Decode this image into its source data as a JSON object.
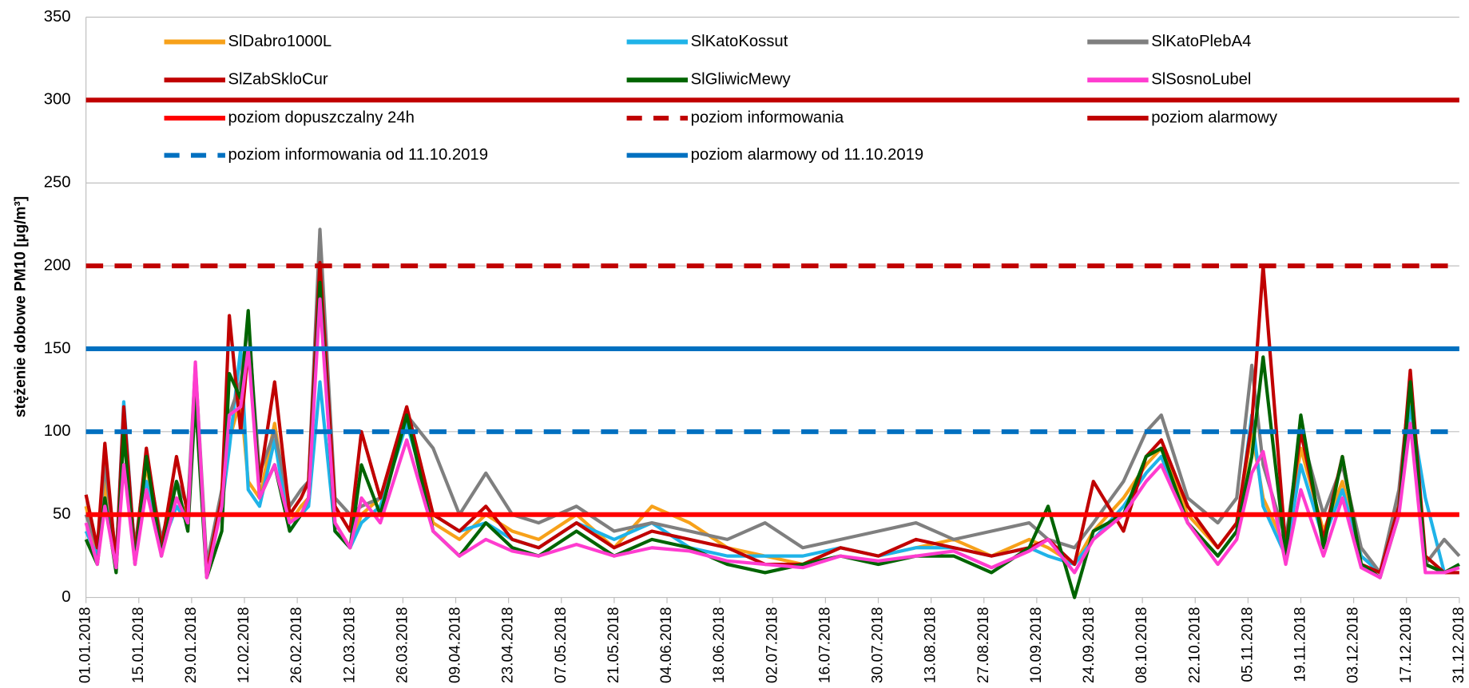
{
  "chart_data": {
    "type": "line",
    "ylabel": "stężenie dobowe PM10 [µg/m³]",
    "ylim": [
      0,
      350
    ],
    "yticks": [
      0,
      50,
      100,
      150,
      200,
      250,
      300,
      350
    ],
    "grid": true,
    "xlim": [
      0,
      364
    ],
    "xticks": [
      {
        "value": 0,
        "label": "01.01.2018"
      },
      {
        "value": 14,
        "label": "15.01.2018"
      },
      {
        "value": 28,
        "label": "29.01.2018"
      },
      {
        "value": 42,
        "label": "12.02.2018"
      },
      {
        "value": 56,
        "label": "26.02.2018"
      },
      {
        "value": 70,
        "label": "12.03.2018"
      },
      {
        "value": 84,
        "label": "26.03.2018"
      },
      {
        "value": 98,
        "label": "09.04.2018"
      },
      {
        "value": 112,
        "label": "23.04.2018"
      },
      {
        "value": 126,
        "label": "07.05.2018"
      },
      {
        "value": 140,
        "label": "21.05.2018"
      },
      {
        "value": 154,
        "label": "04.06.2018"
      },
      {
        "value": 168,
        "label": "18.06.2018"
      },
      {
        "value": 182,
        "label": "02.07.2018"
      },
      {
        "value": 196,
        "label": "16.07.2018"
      },
      {
        "value": 210,
        "label": "30.07.2018"
      },
      {
        "value": 224,
        "label": "13.08.2018"
      },
      {
        "value": 238,
        "label": "27.08.2018"
      },
      {
        "value": 252,
        "label": "10.09.2018"
      },
      {
        "value": 266,
        "label": "24.09.2018"
      },
      {
        "value": 280,
        "label": "08.10.2018"
      },
      {
        "value": 294,
        "label": "22.10.2018"
      },
      {
        "value": 308,
        "label": "05.11.2018"
      },
      {
        "value": 322,
        "label": "19.11.2018"
      },
      {
        "value": 336,
        "label": "03.12.2018"
      },
      {
        "value": 350,
        "label": "17.12.2018"
      },
      {
        "value": 364,
        "label": "31.12.2018"
      }
    ],
    "x": [
      0,
      3,
      5,
      8,
      10,
      13,
      16,
      20,
      24,
      27,
      29,
      32,
      36,
      38,
      41,
      43,
      46,
      50,
      54,
      57,
      59,
      62,
      66,
      70,
      73,
      78,
      85,
      92,
      99,
      106,
      113,
      120,
      130,
      140,
      150,
      160,
      170,
      180,
      190,
      200,
      210,
      220,
      230,
      240,
      250,
      255,
      262,
      267,
      275,
      281,
      285,
      292,
      300,
      305,
      309,
      312,
      318,
      322,
      328,
      333,
      338,
      343,
      348,
      351,
      355,
      360,
      364
    ],
    "series": [
      {
        "name": "SlDabro1000L",
        "color": "#f7a11a",
        "values": [
          55,
          25,
          70,
          20,
          110,
          25,
          80,
          30,
          60,
          50,
          135,
          15,
          60,
          95,
          120,
          70,
          60,
          105,
          45,
          55,
          60,
          195,
          45,
          30,
          50,
          60,
          110,
          45,
          35,
          50,
          40,
          35,
          50,
          30,
          55,
          45,
          30,
          25,
          20,
          30,
          25,
          30,
          35,
          25,
          35,
          30,
          20,
          40,
          60,
          80,
          90,
          50,
          30,
          45,
          100,
          60,
          30,
          90,
          40,
          70,
          25,
          15,
          60,
          125,
          20,
          15,
          20
        ]
      },
      {
        "name": "SlKatoKossut",
        "color": "#1fb3e8",
        "values": [
          40,
          25,
          60,
          20,
          118,
          25,
          70,
          30,
          55,
          45,
          130,
          15,
          55,
          90,
          150,
          65,
          55,
          95,
          40,
          50,
          55,
          130,
          40,
          30,
          45,
          55,
          105,
          50,
          40,
          45,
          35,
          30,
          45,
          35,
          45,
          30,
          25,
          25,
          25,
          30,
          25,
          30,
          30,
          25,
          30,
          25,
          20,
          35,
          55,
          75,
          85,
          45,
          25,
          40,
          110,
          55,
          25,
          80,
          35,
          65,
          25,
          15,
          55,
          115,
          60,
          15,
          20
        ]
      },
      {
        "name": "SlKatoPlebA4",
        "color": "#7f7f7f",
        "values": [
          50,
          30,
          80,
          25,
          100,
          30,
          85,
          35,
          70,
          55,
          140,
          20,
          65,
          110,
          130,
          165,
          75,
          100,
          55,
          65,
          70,
          222,
          60,
          50,
          55,
          60,
          110,
          90,
          50,
          75,
          50,
          45,
          55,
          40,
          45,
          40,
          35,
          45,
          30,
          35,
          40,
          45,
          35,
          40,
          45,
          35,
          30,
          45,
          70,
          100,
          110,
          60,
          45,
          60,
          140,
          80,
          35,
          100,
          50,
          80,
          30,
          15,
          65,
          130,
          20,
          35,
          25
        ]
      },
      {
        "name": "SlZabSkloCur",
        "color": "#c00000",
        "values": [
          62,
          30,
          93,
          20,
          115,
          25,
          90,
          30,
          85,
          50,
          130,
          15,
          60,
          170,
          100,
          150,
          70,
          130,
          50,
          60,
          70,
          202,
          55,
          40,
          100,
          60,
          115,
          50,
          40,
          55,
          35,
          30,
          45,
          30,
          40,
          35,
          30,
          20,
          20,
          30,
          25,
          35,
          30,
          25,
          30,
          35,
          20,
          70,
          40,
          85,
          95,
          55,
          30,
          45,
          105,
          200,
          30,
          100,
          35,
          85,
          20,
          15,
          55,
          137,
          25,
          15,
          15
        ]
      },
      {
        "name": "SlGliwicMewy",
        "color": "#006400",
        "values": [
          35,
          20,
          60,
          15,
          100,
          20,
          85,
          25,
          70,
          40,
          120,
          12,
          40,
          135,
          120,
          173,
          60,
          80,
          40,
          50,
          60,
          190,
          40,
          30,
          80,
          50,
          110,
          40,
          25,
          45,
          30,
          25,
          40,
          25,
          35,
          30,
          20,
          15,
          20,
          25,
          20,
          25,
          25,
          15,
          30,
          55,
          0,
          40,
          50,
          85,
          90,
          45,
          25,
          40,
          85,
          145,
          25,
          110,
          30,
          85,
          20,
          12,
          50,
          130,
          20,
          15,
          20
        ]
      },
      {
        "name": "SlSosnoLubel",
        "color": "#ff3ccf",
        "values": [
          45,
          20,
          55,
          18,
          80,
          20,
          65,
          25,
          60,
          45,
          142,
          12,
          55,
          110,
          115,
          150,
          60,
          80,
          45,
          50,
          60,
          180,
          45,
          30,
          60,
          45,
          95,
          40,
          25,
          35,
          28,
          25,
          32,
          25,
          30,
          28,
          22,
          20,
          18,
          25,
          22,
          25,
          28,
          18,
          28,
          35,
          15,
          35,
          50,
          70,
          80,
          45,
          20,
          35,
          75,
          88,
          20,
          65,
          25,
          60,
          18,
          12,
          50,
          105,
          15,
          15,
          18
        ]
      },
      {
        "name": "poziom dopuszczalny 24h",
        "color": "#ff0000",
        "dashed": false,
        "value": 50
      },
      {
        "name": "poziom informowania",
        "color": "#c00000",
        "dashed": true,
        "value": 200
      },
      {
        "name": "poziom alarmowy",
        "color": "#c00000",
        "dashed": false,
        "value": 300
      },
      {
        "name": "poziom informowania od 11.10.2019",
        "color": "#0070c0",
        "dashed": true,
        "value": 100
      },
      {
        "name": "poziom alarmowy od 11.10.2019",
        "color": "#0070c0",
        "dashed": false,
        "value": 150
      }
    ]
  }
}
